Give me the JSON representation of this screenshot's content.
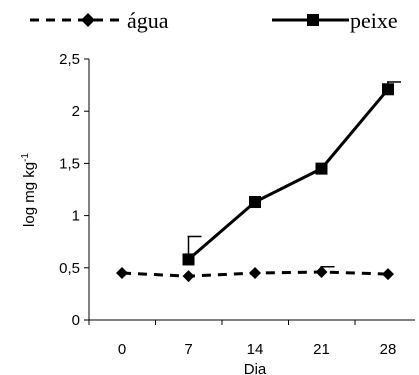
{
  "chart_data": {
    "type": "line",
    "title": "",
    "xlabel": "Dia",
    "ylabel": "log mg kg",
    "ylabel_superscript": "-1",
    "x_ticks": [
      "0",
      "7",
      "14",
      "21",
      "28"
    ],
    "y_ticks": [
      "0",
      "0,5",
      "1",
      "1,5",
      "2",
      "2,5"
    ],
    "ylim": [
      0,
      2.5
    ],
    "x": [
      0,
      7,
      14,
      21,
      28
    ],
    "grid": false,
    "legend_position": "top",
    "series": [
      {
        "name": "água",
        "style": "dashed",
        "marker": "diamond",
        "color": "#000000",
        "values": [
          0.45,
          0.42,
          0.45,
          0.46,
          0.44
        ],
        "error": [
          0,
          0,
          0,
          0.05,
          0
        ]
      },
      {
        "name": "peixe",
        "style": "solid",
        "marker": "square",
        "color": "#000000",
        "values": [
          null,
          0.58,
          1.13,
          1.45,
          2.21
        ],
        "error": [
          0,
          0.22,
          0,
          0,
          0.07
        ]
      }
    ]
  }
}
